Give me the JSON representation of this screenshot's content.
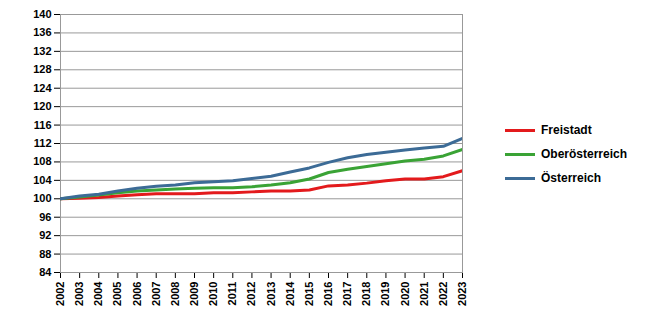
{
  "chart_data": {
    "type": "line",
    "x": [
      2002,
      2003,
      2004,
      2005,
      2006,
      2007,
      2008,
      2009,
      2010,
      2011,
      2012,
      2013,
      2014,
      2015,
      2016,
      2017,
      2018,
      2019,
      2020,
      2021,
      2022,
      2023
    ],
    "series": [
      {
        "name": "Freistadt",
        "color": "#e31a1c",
        "values": [
          100,
          100.1,
          100.3,
          100.6,
          100.9,
          101.1,
          101.1,
          101.1,
          101.3,
          101.3,
          101.5,
          101.7,
          101.7,
          101.9,
          102.8,
          103.0,
          103.4,
          103.9,
          104.3,
          104.3,
          104.8,
          106.1
        ]
      },
      {
        "name": "Oberösterreich",
        "color": "#3aa335",
        "values": [
          100,
          100.4,
          100.8,
          101.3,
          101.7,
          101.9,
          102.1,
          102.3,
          102.4,
          102.4,
          102.6,
          103.0,
          103.5,
          104.3,
          105.7,
          106.4,
          107.0,
          107.6,
          108.2,
          108.6,
          109.3,
          110.7
        ]
      },
      {
        "name": "Österreich",
        "color": "#3c6b96",
        "values": [
          100,
          100.6,
          101.0,
          101.7,
          102.3,
          102.7,
          103.0,
          103.5,
          103.7,
          103.9,
          104.4,
          104.9,
          105.8,
          106.7,
          107.9,
          108.9,
          109.6,
          110.1,
          110.6,
          111.0,
          111.4,
          113.1
        ]
      }
    ],
    "xlim": [
      2002,
      2023
    ],
    "xticks": [
      2002,
      2003,
      2004,
      2005,
      2006,
      2007,
      2008,
      2009,
      2010,
      2011,
      2012,
      2013,
      2014,
      2015,
      2016,
      2017,
      2018,
      2019,
      2020,
      2021,
      2022,
      2023
    ],
    "ylim": [
      84,
      140
    ],
    "yticks": [
      84,
      88,
      92,
      96,
      100,
      104,
      108,
      112,
      116,
      120,
      124,
      128,
      132,
      136,
      140
    ],
    "grid": true,
    "legend": "right"
  }
}
